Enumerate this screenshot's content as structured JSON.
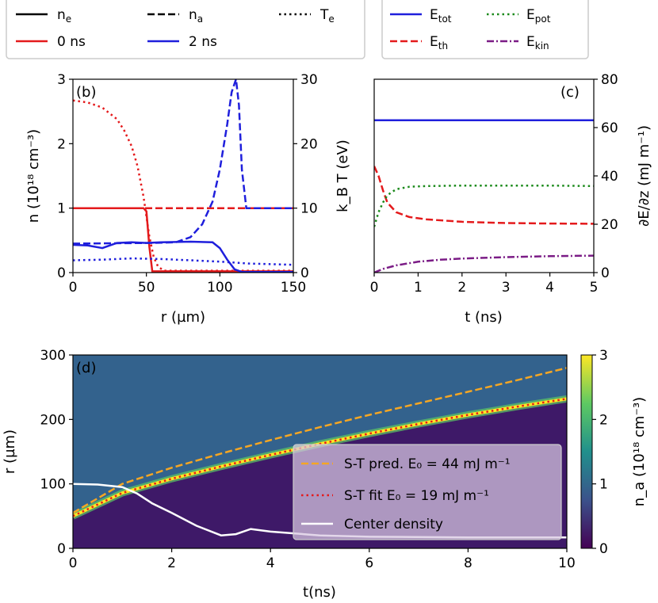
{
  "colors": {
    "red": "#e41a1c",
    "blue": "#1f1fdc",
    "green": "#1b8a1b",
    "purple": "#7b1c86",
    "orange": "#f5a623",
    "white": "#ffffff"
  },
  "chart_data": [
    {
      "id": "b",
      "type": "line",
      "panel_label": "(b)",
      "xlabel": "r (µm)",
      "ylabel": "n (10¹⁸ cm⁻³)",
      "y2label": "k_B T (eV)",
      "xlim": [
        0,
        150
      ],
      "ylim": [
        0,
        3
      ],
      "y2lim": [
        0,
        30
      ],
      "xticks": [
        "0",
        "50",
        "100",
        "150"
      ],
      "yticks": [
        "0",
        "1",
        "2",
        "3"
      ],
      "y2ticks": [
        "0",
        "10",
        "20",
        "30"
      ],
      "legend": {
        "style_entries": [
          {
            "label": "n",
            "sub": "e",
            "style": "solid"
          },
          {
            "label": "n",
            "sub": "a",
            "style": "dashed"
          },
          {
            "label": "T",
            "sub": "e",
            "style": "dotted"
          }
        ],
        "color_entries": [
          {
            "label": "0 ns",
            "color": "red"
          },
          {
            "label": "2 ns",
            "color": "blue"
          }
        ]
      },
      "series": [
        {
          "name": "n_e 0 ns",
          "color": "red",
          "style": "solid",
          "axis": "left",
          "x": [
            0,
            48,
            50,
            52,
            54,
            150
          ],
          "y": [
            1,
            1,
            0.95,
            0.4,
            0.02,
            0.02
          ]
        },
        {
          "name": "n_a 0 ns",
          "color": "red",
          "style": "dashed",
          "axis": "left",
          "x": [
            0,
            150
          ],
          "y": [
            1,
            1
          ]
        },
        {
          "name": "T_e 0 ns",
          "color": "red",
          "style": "dotted",
          "axis": "right",
          "x": [
            0,
            10,
            20,
            30,
            35,
            40,
            44,
            48,
            52,
            55,
            58,
            62,
            150
          ],
          "y": [
            26.7,
            26.4,
            25.6,
            23.8,
            22,
            19.6,
            16.5,
            11.8,
            5.6,
            2.4,
            0.9,
            0.3,
            0.3
          ]
        },
        {
          "name": "n_e 2 ns",
          "color": "blue",
          "style": "solid",
          "axis": "left",
          "x": [
            0,
            10,
            20,
            25,
            30,
            40,
            50,
            60,
            80,
            95,
            100,
            105,
            110,
            115,
            150
          ],
          "y": [
            0.43,
            0.42,
            0.38,
            0.42,
            0.46,
            0.47,
            0.46,
            0.47,
            0.48,
            0.47,
            0.38,
            0.2,
            0.05,
            0.01,
            0.01
          ]
        },
        {
          "name": "n_a 2 ns",
          "color": "blue",
          "style": "dashed",
          "axis": "left",
          "x": [
            0,
            55,
            70,
            80,
            88,
            95,
            100,
            105,
            108,
            111,
            113,
            115,
            118,
            150
          ],
          "y": [
            0.45,
            0.46,
            0.47,
            0.55,
            0.75,
            1.1,
            1.6,
            2.3,
            2.8,
            3.0,
            2.6,
            1.6,
            1.0,
            1.0
          ]
        },
        {
          "name": "T_e 2 ns",
          "color": "blue",
          "style": "dotted",
          "axis": "right",
          "x": [
            0,
            20,
            40,
            60,
            80,
            100,
            120,
            150
          ],
          "y": [
            1.9,
            2.0,
            2.2,
            2.1,
            1.9,
            1.7,
            1.4,
            1.2
          ]
        }
      ]
    },
    {
      "id": "c",
      "type": "line",
      "panel_label": "(c)",
      "xlabel": "t (ns)",
      "y2label": "∂E/∂z (mJ m⁻¹)",
      "xlim": [
        0,
        5
      ],
      "y2lim": [
        0,
        80
      ],
      "xticks": [
        "0",
        "1",
        "2",
        "3",
        "4",
        "5"
      ],
      "y2ticks": [
        "0",
        "20",
        "40",
        "60",
        "80"
      ],
      "legend": {
        "entries": [
          {
            "label": "E",
            "sub": "tot",
            "color": "blue",
            "style": "solid"
          },
          {
            "label": "E",
            "sub": "pot",
            "color": "green",
            "style": "dotted"
          },
          {
            "label": "E",
            "sub": "th",
            "color": "red",
            "style": "dashed"
          },
          {
            "label": "E",
            "sub": "kin",
            "color": "purple",
            "style": "dashdot"
          }
        ]
      },
      "series": [
        {
          "name": "E_tot",
          "color": "blue",
          "style": "solid",
          "t": [
            0,
            5
          ],
          "y": [
            63,
            63
          ]
        },
        {
          "name": "E_th",
          "color": "red",
          "style": "dashed",
          "t": [
            0,
            0.1,
            0.2,
            0.3,
            0.5,
            0.8,
            1.2,
            2,
            3,
            4,
            5
          ],
          "y": [
            44,
            40,
            34,
            29,
            25,
            23,
            22,
            21,
            20.5,
            20.3,
            20.2
          ]
        },
        {
          "name": "E_pot",
          "color": "green",
          "style": "dotted",
          "t": [
            0,
            0.1,
            0.2,
            0.3,
            0.5,
            0.8,
            1.2,
            2,
            3,
            4,
            5
          ],
          "y": [
            19,
            25,
            29,
            32,
            34.5,
            35.5,
            35.8,
            36,
            36,
            36,
            35.8
          ]
        },
        {
          "name": "E_kin",
          "color": "purple",
          "style": "dashdot",
          "t": [
            0,
            0.2,
            0.5,
            1,
            1.5,
            2,
            3,
            4,
            5
          ],
          "y": [
            0,
            1.5,
            3,
            4.5,
            5.3,
            5.8,
            6.4,
            6.8,
            7
          ]
        }
      ]
    },
    {
      "id": "d",
      "type": "heatmap",
      "panel_label": "(d)",
      "xlabel": "t(ns)",
      "ylabel": "r (µm)",
      "xlim": [
        0,
        10
      ],
      "ylim": [
        0,
        300
      ],
      "xticks": [
        "0",
        "2",
        "4",
        "6",
        "8",
        "10"
      ],
      "yticks": [
        "0",
        "100",
        "200",
        "300"
      ],
      "colorbar": {
        "label": "n_a (10¹⁸ cm⁻³)",
        "range": [
          0,
          3
        ],
        "ticks": [
          "0",
          "1",
          "2",
          "3"
        ]
      },
      "legend": {
        "entries": [
          {
            "label": "S-T pred. E₀ = 44 mJ m⁻¹",
            "color": "orange",
            "style": "dashed"
          },
          {
            "label": "S-T fit E₀ = 19 mJ m⁻¹",
            "color": "red",
            "style": "dotted"
          },
          {
            "label": "Center density",
            "color": "white",
            "style": "solid"
          }
        ]
      },
      "series": [
        {
          "name": "S-T pred.",
          "color": "orange",
          "style": "dashed",
          "t": [
            0,
            1,
            2,
            3,
            4,
            5,
            6,
            7,
            8,
            9,
            10
          ],
          "r": [
            55,
            100,
            125,
            147,
            168,
            188,
            207,
            225,
            243,
            261,
            280
          ]
        },
        {
          "name": "S-T fit",
          "color": "red",
          "style": "dotted",
          "t": [
            0,
            1,
            2,
            3,
            4,
            5,
            6,
            7,
            8,
            9,
            10
          ],
          "r": [
            50,
            86,
            108,
            127,
            145,
            162,
            178,
            193,
            207,
            220,
            232
          ]
        },
        {
          "name": "Center density",
          "color": "white",
          "style": "solid",
          "t": [
            0,
            0.5,
            1,
            1.3,
            1.6,
            2,
            2.5,
            3,
            3.3,
            3.6,
            4,
            5,
            6,
            8,
            10
          ],
          "r": [
            100,
            99,
            95,
            85,
            70,
            55,
            35,
            20,
            22,
            30,
            26,
            20,
            18,
            17,
            17
          ]
        }
      ]
    }
  ]
}
